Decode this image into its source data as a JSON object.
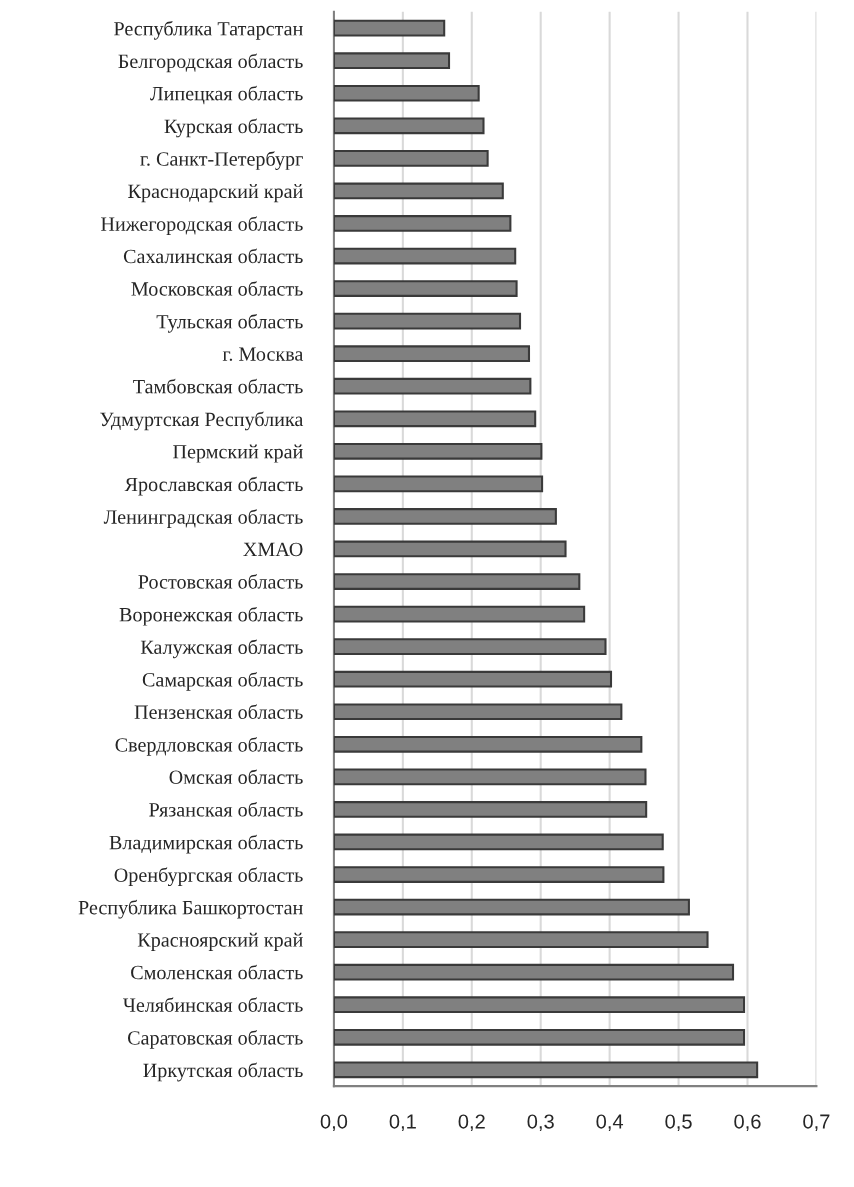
{
  "chart_data": {
    "type": "bar",
    "orientation": "horizontal",
    "categories": [
      "Республика Татарстан",
      "Белгородская область",
      "Липецкая область",
      "Курская область",
      "г. Санкт-Петербург",
      "Краснодарский край",
      "Нижегородская область",
      "Сахалинская область",
      "Московская область",
      "Тульская область",
      "г. Москва",
      "Тамбовская область",
      "Удмуртская Республика",
      "Пермский край",
      "Ярославская область",
      "Ленинградская область",
      "ХМАО",
      "Ростовская область",
      "Воронежская область",
      "Калужская область",
      "Самарская область",
      "Пензенская область",
      "Свердловская область",
      "Омская область",
      "Рязанская область",
      "Владимирская область",
      "Оренбургская область",
      "Республика Башкортостан",
      "Красноярский край",
      "Смоленская область",
      "Челябинская область",
      "Саратовская область",
      "Иркутская область"
    ],
    "values": [
      0.16,
      0.167,
      0.21,
      0.217,
      0.223,
      0.245,
      0.256,
      0.263,
      0.265,
      0.27,
      0.283,
      0.285,
      0.292,
      0.301,
      0.302,
      0.322,
      0.336,
      0.356,
      0.363,
      0.394,
      0.402,
      0.417,
      0.446,
      0.452,
      0.453,
      0.477,
      0.478,
      0.515,
      0.542,
      0.579,
      0.595,
      0.595,
      0.614
    ],
    "color": "#808080",
    "xlim": [
      0,
      0.7
    ],
    "xticks": [
      {
        "value": 0,
        "label": "0,0"
      },
      {
        "value": 0.1,
        "label": "0,1"
      },
      {
        "value": 0.2,
        "label": "0,2"
      },
      {
        "value": 0.3,
        "label": "0,3"
      },
      {
        "value": 0.4,
        "label": "0,4"
      },
      {
        "value": 0.5,
        "label": "0,5"
      },
      {
        "value": 0.6,
        "label": "0,6"
      },
      {
        "value": 0.7,
        "label": "0,7"
      }
    ],
    "grid": "x",
    "legend": false
  }
}
